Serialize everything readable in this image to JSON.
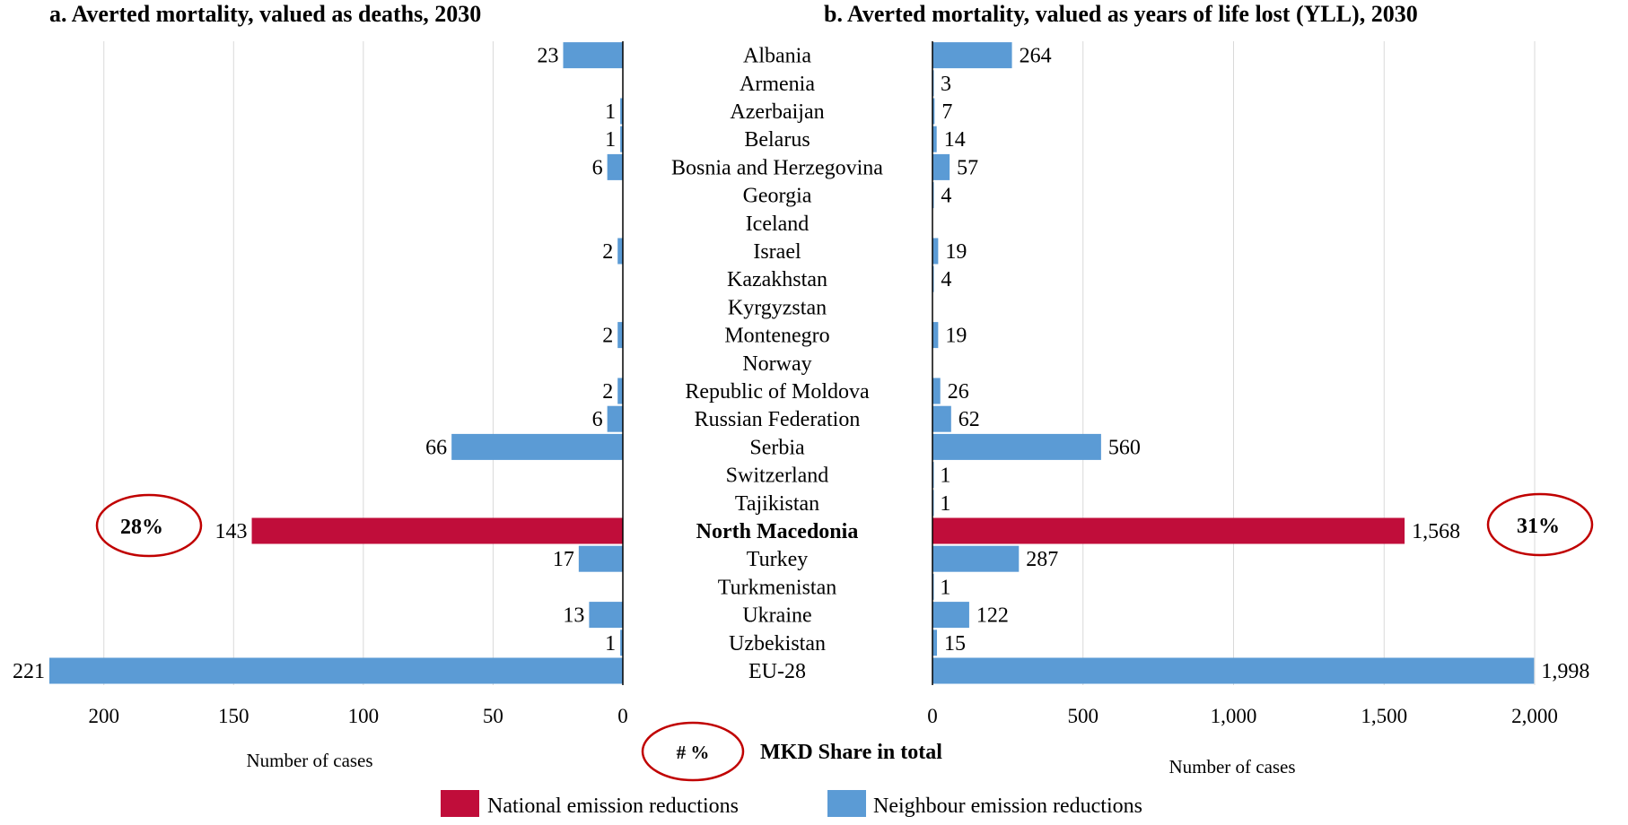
{
  "colors": {
    "national": "#C00D3A",
    "neighbour": "#5B9BD5",
    "circle": "#C00000",
    "grid": "#D9D9D9"
  },
  "chart_data": [
    {
      "type": "bar",
      "orientation": "horizontal",
      "direction": "leftward",
      "title": "a. Averted mortality, valued as deaths, 2030",
      "xlabel": "Number of cases",
      "xlim": [
        0,
        221
      ],
      "xticks": [
        200,
        150,
        100,
        50,
        0
      ],
      "xtick_labels": [
        "200",
        "150",
        "100",
        "50",
        "0"
      ],
      "grid": true,
      "categories": [
        "Albania",
        "Armenia",
        "Azerbaijan",
        "Belarus",
        "Bosnia and Herzegovina",
        "Georgia",
        "Iceland",
        "Israel",
        "Kazakhstan",
        "Kyrgyzstan",
        "Montenegro",
        "Norway",
        "Republic of Moldova",
        "Russian Federation",
        "Serbia",
        "Switzerland",
        "Tajikistan",
        "North Macedonia",
        "Turkey",
        "Turkmenistan",
        "Ukraine",
        "Uzbekistan",
        "EU-28"
      ],
      "values": [
        23,
        0,
        1,
        1,
        6,
        0,
        0,
        2,
        0,
        0,
        2,
        0,
        2,
        6,
        66,
        0,
        0,
        143,
        17,
        0,
        13,
        1,
        221
      ],
      "value_labels": [
        "23",
        "",
        "1",
        "1",
        "6",
        "",
        "",
        "2",
        "",
        "",
        "2",
        "",
        "2",
        "6",
        "66",
        "",
        "",
        "143",
        "17",
        "",
        "13",
        "1",
        "221"
      ],
      "series_type": [
        "neighbour",
        "neighbour",
        "neighbour",
        "neighbour",
        "neighbour",
        "neighbour",
        "neighbour",
        "neighbour",
        "neighbour",
        "neighbour",
        "neighbour",
        "neighbour",
        "neighbour",
        "neighbour",
        "neighbour",
        "neighbour",
        "neighbour",
        "national",
        "neighbour",
        "neighbour",
        "neighbour",
        "neighbour",
        "neighbour"
      ],
      "annotation": "28%"
    },
    {
      "type": "bar",
      "orientation": "horizontal",
      "direction": "rightward",
      "title": "b. Averted mortality, valued as years of life lost (YLL), 2030",
      "xlabel": "Number of cases",
      "xlim": [
        0,
        2000
      ],
      "xticks": [
        0,
        500,
        1000,
        1500,
        2000
      ],
      "xtick_labels": [
        "0",
        "500",
        "1,000",
        "1,500",
        "2,000"
      ],
      "grid": true,
      "categories": [
        "Albania",
        "Armenia",
        "Azerbaijan",
        "Belarus",
        "Bosnia and Herzegovina",
        "Georgia",
        "Iceland",
        "Israel",
        "Kazakhstan",
        "Kyrgyzstan",
        "Montenegro",
        "Norway",
        "Republic of Moldova",
        "Russian Federation",
        "Serbia",
        "Switzerland",
        "Tajikistan",
        "North Macedonia",
        "Turkey",
        "Turkmenistan",
        "Ukraine",
        "Uzbekistan",
        "EU-28"
      ],
      "values": [
        264,
        3,
        7,
        14,
        57,
        4,
        0,
        19,
        4,
        0,
        19,
        0,
        26,
        62,
        560,
        1,
        1,
        1568,
        287,
        1,
        122,
        15,
        1998
      ],
      "value_labels": [
        "264",
        "3",
        "7",
        "14",
        "57",
        "4",
        "",
        "19",
        "4",
        "",
        "19",
        "",
        "26",
        "62",
        "560",
        "1",
        "1",
        "1,568",
        "287",
        "1",
        "122",
        "15",
        "1,998"
      ],
      "series_type": [
        "neighbour",
        "neighbour",
        "neighbour",
        "neighbour",
        "neighbour",
        "neighbour",
        "neighbour",
        "neighbour",
        "neighbour",
        "neighbour",
        "neighbour",
        "neighbour",
        "neighbour",
        "neighbour",
        "neighbour",
        "neighbour",
        "neighbour",
        "national",
        "neighbour",
        "neighbour",
        "neighbour",
        "neighbour",
        "neighbour"
      ],
      "annotation": "31%"
    }
  ],
  "highlight_category": "North Macedonia",
  "share_key": {
    "symbol": "# %",
    "label": "MKD Share in total"
  },
  "legend": [
    {
      "name": "National emission reductions",
      "color_key": "national"
    },
    {
      "name": "Neighbour emission reductions",
      "color_key": "neighbour"
    }
  ]
}
